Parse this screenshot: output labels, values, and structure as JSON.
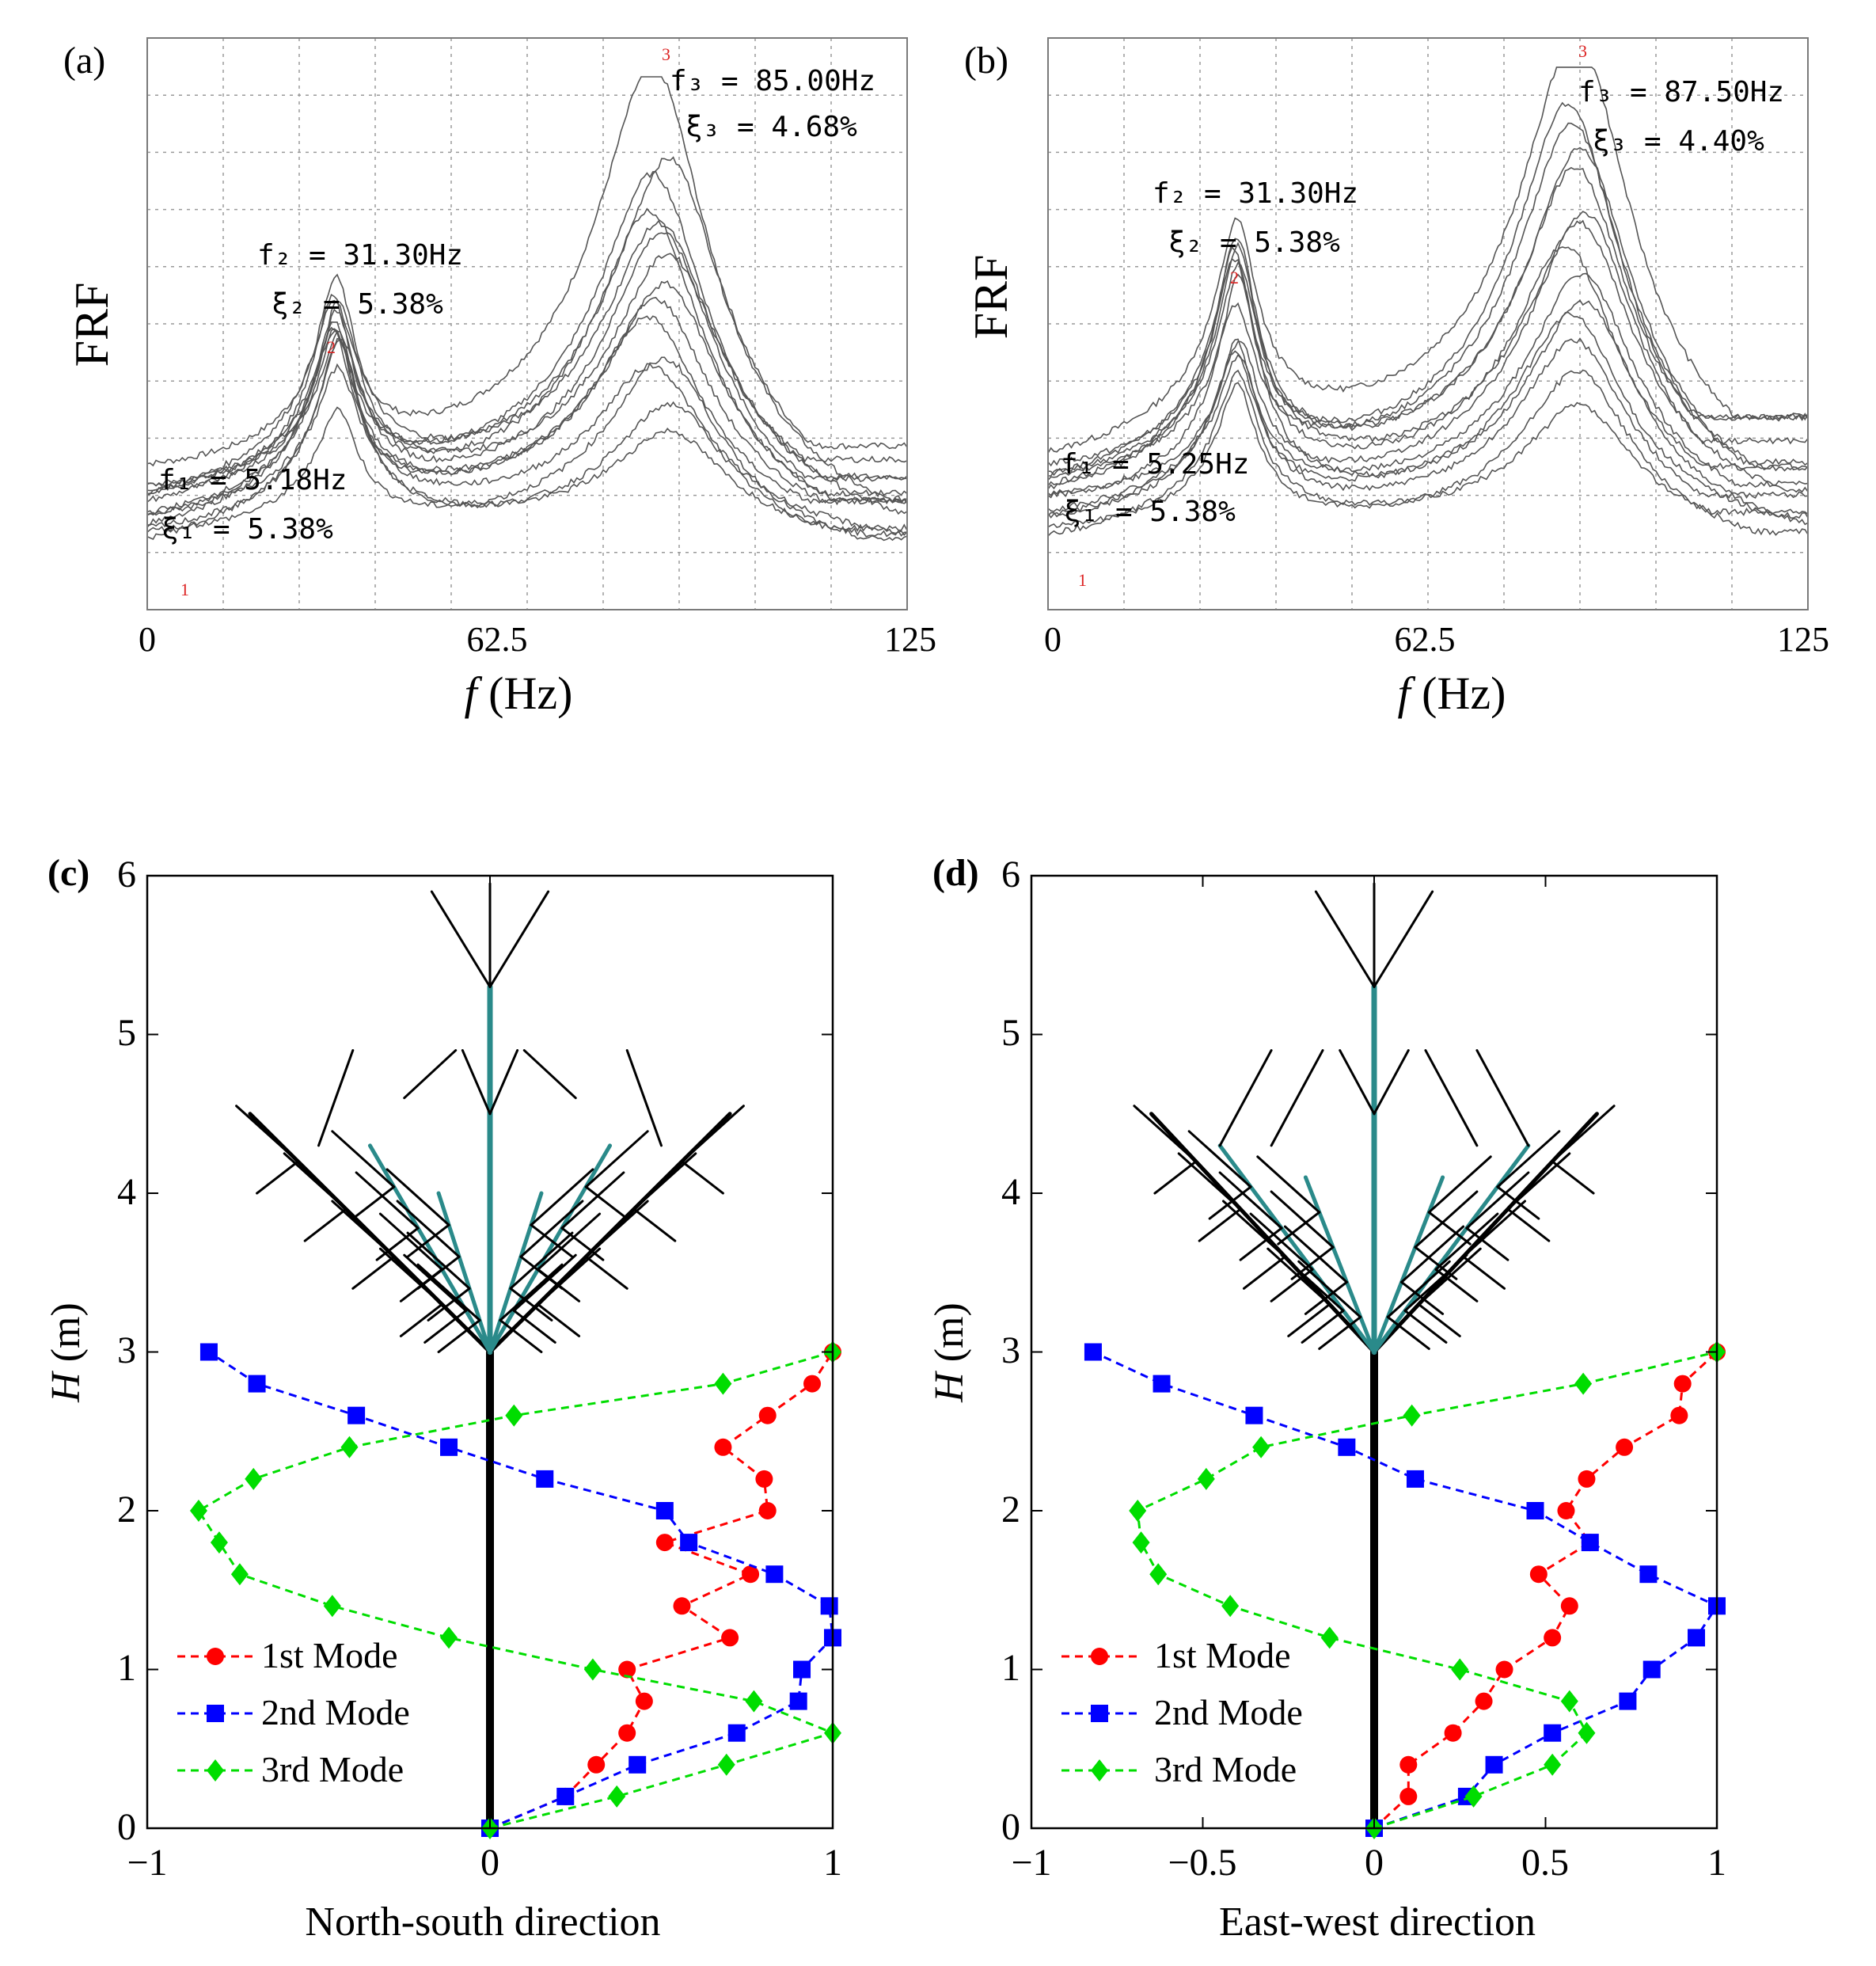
{
  "figure": {
    "panels": [
      {
        "id": "a",
        "label": "(a)",
        "ylabel": "FRF",
        "xlabel": "f (Hz)",
        "xlabel_var": "f",
        "xlabel_unit": "(Hz)",
        "xticks": [
          "0",
          "62.5",
          "125"
        ],
        "peaks": [
          {
            "marker": "1",
            "f_line": "f₁ = 5.18Hz",
            "xi_line": "ξ₁ = 5.38%"
          },
          {
            "marker": "2",
            "f_line": "f₂ = 31.30Hz",
            "xi_line": "ξ₂ = 5.38%"
          },
          {
            "marker": "3",
            "f_line": "f₃ = 85.00Hz",
            "xi_line": "ξ₃ = 4.68%"
          }
        ]
      },
      {
        "id": "b",
        "label": "(b)",
        "ylabel": "FRF",
        "xlabel": "f (Hz)",
        "xlabel_var": "f",
        "xlabel_unit": "(Hz)",
        "xticks": [
          "0",
          "62.5",
          "125"
        ],
        "peaks": [
          {
            "marker": "1",
            "f_line": "f₁ = 5.25Hz",
            "xi_line": "ξ₁ = 5.38%"
          },
          {
            "marker": "2",
            "f_line": "f₂ = 31.30Hz",
            "xi_line": "ξ₂ = 5.38%"
          },
          {
            "marker": "3",
            "f_line": "f₃ = 87.50Hz",
            "xi_line": "ξ₃ = 4.40%"
          }
        ]
      },
      {
        "id": "c",
        "label": "(c)",
        "ylabel_var": "H",
        "ylabel_unit": "(m)",
        "xlabel": "North-south direction",
        "xticks": [
          "−1",
          "0",
          "1"
        ],
        "yticks": [
          "0",
          "1",
          "2",
          "3",
          "4",
          "5",
          "6"
        ],
        "legend": [
          "1st Mode",
          "2nd Mode",
          "3rd Mode"
        ]
      },
      {
        "id": "d",
        "label": "(d)",
        "ylabel_var": "H",
        "ylabel_unit": "(m)",
        "xlabel": "East-west direction",
        "xticks": [
          "−1",
          "−0.5",
          "0",
          "0.5",
          "1"
        ],
        "yticks": [
          "0",
          "1",
          "2",
          "3",
          "4",
          "5",
          "6"
        ],
        "legend": [
          "1st Mode",
          "2nd Mode",
          "3rd Mode"
        ]
      }
    ]
  },
  "chart_data": [
    {
      "panel": "a",
      "type": "line",
      "xlabel": "f (Hz)",
      "ylabel": "FRF",
      "xlim": [
        0,
        125
      ],
      "xticks": [
        0,
        62.5,
        125
      ],
      "grid": true,
      "line_color": "#555555",
      "curve_count": 14,
      "curves_peak_relative_amplitude": [
        1.0,
        0.82,
        0.78,
        0.72,
        0.68,
        0.65,
        0.6,
        0.56,
        0.52,
        0.48,
        0.44,
        0.38,
        0.33,
        0.25
      ],
      "peaks": [
        {
          "mode": 1,
          "frequency_hz": 5.18,
          "damping_pct": 5.38
        },
        {
          "mode": 2,
          "frequency_hz": 31.3,
          "damping_pct": 5.38
        },
        {
          "mode": 3,
          "frequency_hz": 85.0,
          "damping_pct": 4.68
        }
      ]
    },
    {
      "panel": "b",
      "type": "line",
      "xlabel": "f (Hz)",
      "ylabel": "FRF",
      "xlim": [
        0,
        125
      ],
      "xticks": [
        0,
        62.5,
        125
      ],
      "grid": true,
      "line_color": "#555555",
      "curve_count": 14,
      "curves_peak_relative_amplitude": [
        1.0,
        0.9,
        0.85,
        0.8,
        0.75,
        0.7,
        0.64,
        0.6,
        0.56,
        0.52,
        0.48,
        0.44,
        0.4,
        0.3
      ],
      "peaks": [
        {
          "mode": 1,
          "frequency_hz": 5.25,
          "damping_pct": 5.38
        },
        {
          "mode": 2,
          "frequency_hz": 31.3,
          "damping_pct": 5.38
        },
        {
          "mode": 3,
          "frequency_hz": 87.5,
          "damping_pct": 4.4
        }
      ]
    },
    {
      "panel": "c",
      "type": "line",
      "xlabel": "North-south direction",
      "ylabel": "H (m)",
      "xlim": [
        -1,
        1
      ],
      "ylim": [
        0,
        6
      ],
      "legend_position": "bottom-left",
      "series": [
        {
          "name": "1st Mode",
          "color": "#ff0000",
          "marker": "circle",
          "x": [
            0,
            0.22,
            0.31,
            0.4,
            0.45,
            0.4,
            0.7,
            0.56,
            0.76,
            0.51,
            0.81,
            0.8,
            0.68,
            0.81,
            0.94,
            1.0
          ],
          "y": [
            0,
            0.2,
            0.4,
            0.6,
            0.8,
            1.0,
            1.2,
            1.4,
            1.6,
            1.8,
            2.0,
            2.2,
            2.4,
            2.6,
            2.8,
            3.0
          ]
        },
        {
          "name": "2nd Mode",
          "color": "#0000ff",
          "marker": "square",
          "x": [
            0,
            0.22,
            0.43,
            0.72,
            0.9,
            0.91,
            1.0,
            0.99,
            0.83,
            0.58,
            0.51,
            0.16,
            -0.12,
            -0.39,
            -0.68,
            -0.82
          ],
          "y": [
            0,
            0.2,
            0.4,
            0.6,
            0.8,
            1.0,
            1.2,
            1.4,
            1.6,
            1.8,
            2.0,
            2.2,
            2.4,
            2.6,
            2.8,
            3.0
          ]
        },
        {
          "name": "3rd Mode",
          "color": "#00dd00",
          "marker": "diamond",
          "x": [
            0,
            0.37,
            0.69,
            1.0,
            0.77,
            0.3,
            -0.12,
            -0.46,
            -0.73,
            -0.79,
            -0.85,
            -0.69,
            -0.41,
            0.07,
            0.68,
            1.0
          ],
          "y": [
            0,
            0.2,
            0.4,
            0.6,
            0.8,
            1.0,
            1.2,
            1.4,
            1.6,
            1.8,
            2.0,
            2.2,
            2.4,
            2.6,
            2.8,
            3.0
          ]
        }
      ]
    },
    {
      "panel": "d",
      "type": "line",
      "xlabel": "East-west direction",
      "ylabel": "H (m)",
      "xlim": [
        -1,
        1
      ],
      "ylim": [
        0,
        6
      ],
      "legend_position": "bottom-left",
      "series": [
        {
          "name": "1st Mode",
          "color": "#ff0000",
          "marker": "circle",
          "x": [
            0,
            0.1,
            0.1,
            0.23,
            0.32,
            0.38,
            0.52,
            0.57,
            0.48,
            0.63,
            0.56,
            0.62,
            0.73,
            0.89,
            0.9,
            1.0
          ],
          "y": [
            0,
            0.2,
            0.4,
            0.6,
            0.8,
            1.0,
            1.2,
            1.4,
            1.6,
            1.8,
            2.0,
            2.2,
            2.4,
            2.6,
            2.8,
            3.0
          ]
        },
        {
          "name": "2nd Mode",
          "color": "#0000ff",
          "marker": "square",
          "x": [
            0,
            0.27,
            0.35,
            0.52,
            0.74,
            0.81,
            0.94,
            1.0,
            0.8,
            0.63,
            0.47,
            0.12,
            -0.08,
            -0.35,
            -0.62,
            -0.82
          ],
          "y": [
            0,
            0.2,
            0.4,
            0.6,
            0.8,
            1.0,
            1.2,
            1.4,
            1.6,
            1.8,
            2.0,
            2.2,
            2.4,
            2.6,
            2.8,
            3.0
          ]
        },
        {
          "name": "3rd Mode",
          "color": "#00dd00",
          "marker": "diamond",
          "x": [
            0,
            0.29,
            0.52,
            0.62,
            0.57,
            0.25,
            -0.13,
            -0.42,
            -0.63,
            -0.68,
            -0.69,
            -0.49,
            -0.33,
            0.11,
            0.61,
            1.0
          ],
          "y": [
            0,
            0.2,
            0.4,
            0.6,
            0.8,
            1.0,
            1.2,
            1.4,
            1.6,
            1.8,
            2.0,
            2.2,
            2.4,
            2.6,
            2.8,
            3.0
          ]
        }
      ]
    }
  ]
}
